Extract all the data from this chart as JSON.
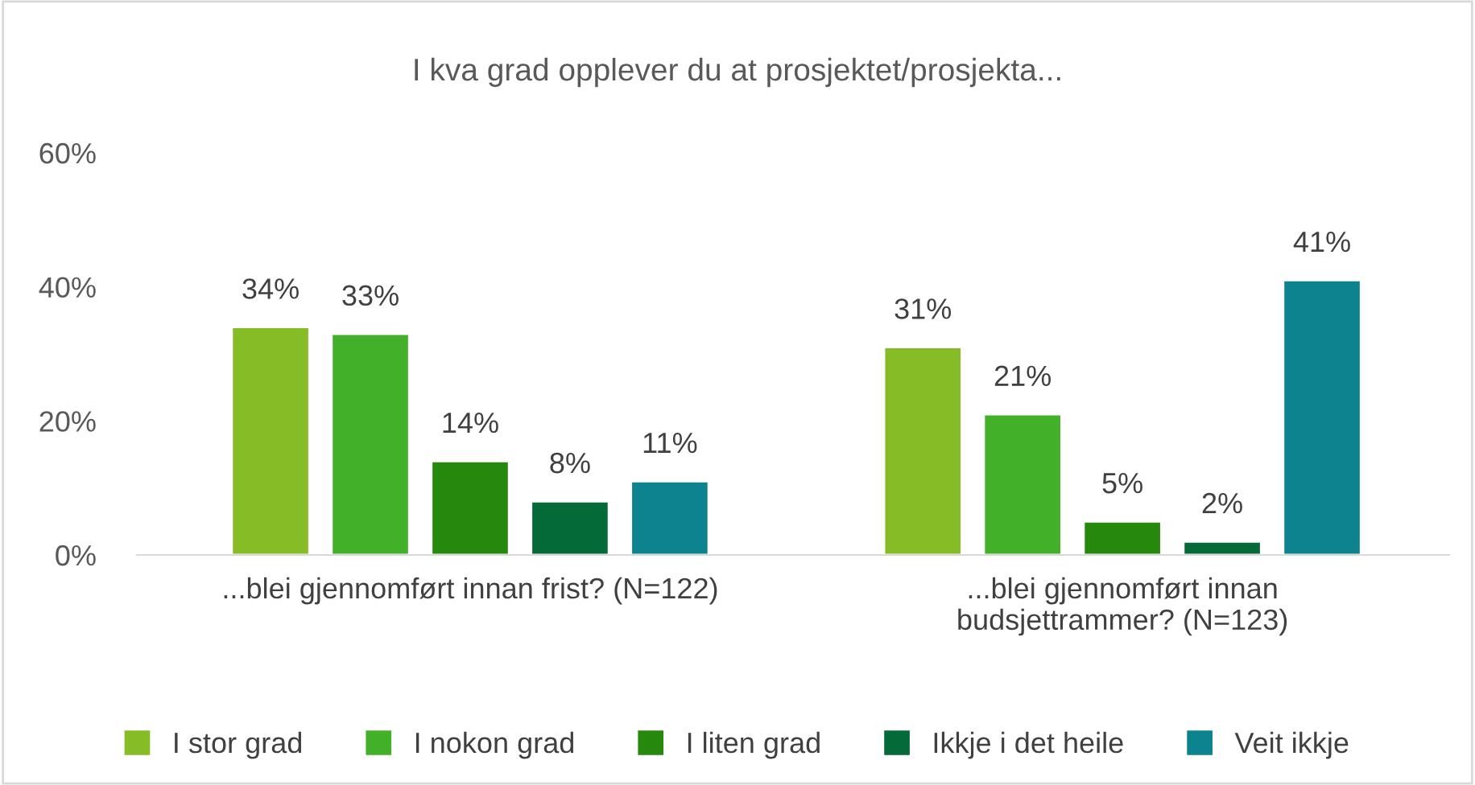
{
  "chart_data": {
    "type": "bar",
    "title": "I kva grad opplever du at prosjektet/prosjekta...",
    "categories": [
      "...blei gjennomført innan frist? (N=122)",
      "...blei gjennomført innan\nbudsjettrammer? (N=123)"
    ],
    "series": [
      {
        "name": "I stor grad",
        "color": "#86bc25",
        "values": [
          34,
          31
        ]
      },
      {
        "name": "I nokon grad",
        "color": "#43b02a",
        "values": [
          33,
          21
        ]
      },
      {
        "name": "I liten grad",
        "color": "#26890d",
        "values": [
          14,
          5
        ]
      },
      {
        "name": "Ikkje i det heile",
        "color": "#046a38",
        "values": [
          8,
          2
        ]
      },
      {
        "name": "Veit ikkje",
        "color": "#0d8390",
        "values": [
          11,
          41
        ]
      }
    ],
    "ylim": [
      0,
      60
    ],
    "yticks": [
      {
        "value": 0,
        "label": "0%"
      },
      {
        "value": 20,
        "label": "20%"
      },
      {
        "value": 40,
        "label": "40%"
      },
      {
        "value": 60,
        "label": "60%"
      }
    ],
    "value_labels": [
      [
        "34%",
        "31%"
      ],
      [
        "33%",
        "21%"
      ],
      [
        "14%",
        "5%"
      ],
      [
        "8%",
        "2%"
      ],
      [
        "11%",
        "41%"
      ]
    ],
    "grid": false,
    "legend": "bottom"
  }
}
